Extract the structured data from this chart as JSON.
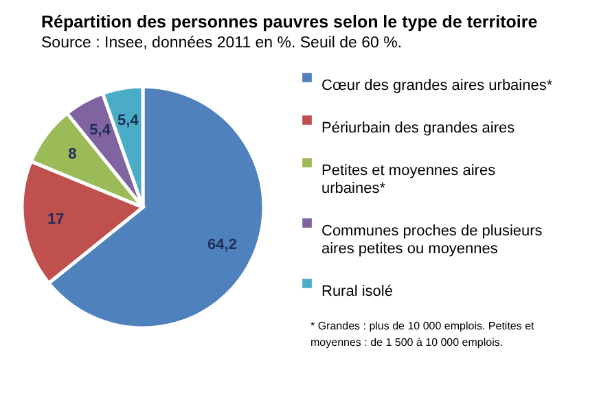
{
  "chart_data": {
    "type": "pie",
    "title": "Répartition des personnes pauvres selon le type de territoire",
    "subtitle": "Source : Insee, données 2011 en %.  Seuil  de 60 %.",
    "categories": [
      "Cœur des grandes aires urbaines*",
      "Périurbain des grandes aires",
      "Petites et moyennes aires urbaines*",
      "Communes proches de plusieurs aires petites ou moyennes",
      "Rural isolé"
    ],
    "values": [
      64.2,
      17,
      8,
      5.4,
      5.4
    ],
    "value_labels": [
      "64,2",
      "17",
      "8",
      "5,4",
      "5,4"
    ],
    "colors": [
      "#4f81bd",
      "#c0504d",
      "#9bbb59",
      "#8064a2",
      "#4bacc6"
    ],
    "legend": "right",
    "annotations": [
      "* Grandes : plus de 10 000 emplois. Petites et moyennes : de 1 500 à 10 000 emplois."
    ]
  }
}
